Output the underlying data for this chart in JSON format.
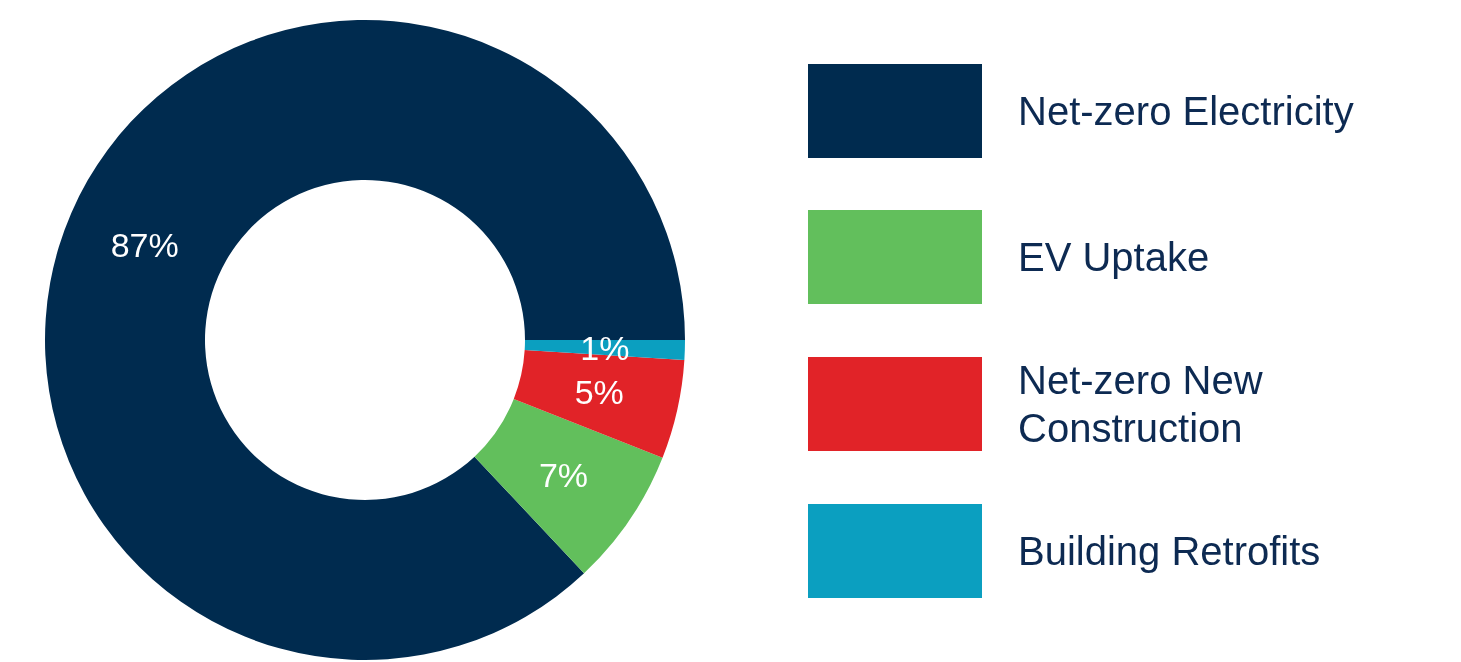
{
  "chart_data": {
    "type": "donut",
    "categories": [
      "Net-zero Electricity",
      "EV Uptake",
      "Net-zero New Construction",
      "Building Retrofits"
    ],
    "values": [
      87,
      7,
      5,
      1
    ],
    "colors": [
      "#002b4f",
      "#62bf5c",
      "#e12328",
      "#0b9fc0"
    ],
    "value_labels": [
      "87%",
      "7%",
      "5%",
      "1%"
    ],
    "legend": "right"
  }
}
